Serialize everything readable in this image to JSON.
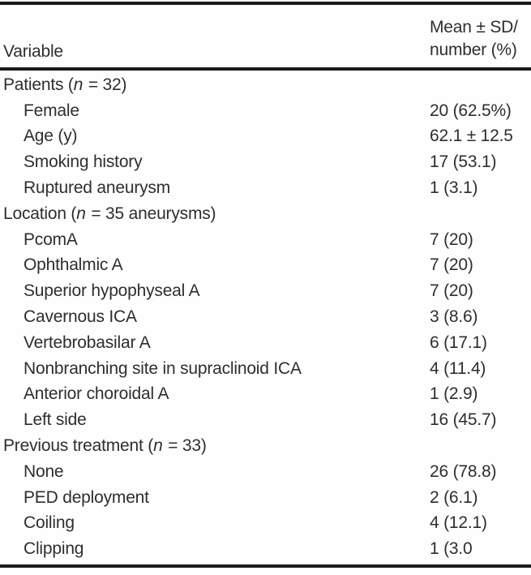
{
  "table": {
    "header": {
      "col1": "Variable",
      "col2_line1": "Mean ± SD/",
      "col2_line2": "number (%)"
    },
    "rows": [
      {
        "label_parts": [
          {
            "t": "Patients ("
          },
          {
            "t": "n",
            "italic": true
          },
          {
            "t": " = 32)"
          }
        ],
        "value": "",
        "indent": 0
      },
      {
        "label_parts": [
          {
            "t": "Female"
          }
        ],
        "value": "20 (62.5%)",
        "indent": 1
      },
      {
        "label_parts": [
          {
            "t": "Age (y)"
          }
        ],
        "value": "62.1 ± 12.5",
        "indent": 1
      },
      {
        "label_parts": [
          {
            "t": "Smoking history"
          }
        ],
        "value": "17 (53.1)",
        "indent": 1
      },
      {
        "label_parts": [
          {
            "t": "Ruptured aneurysm"
          }
        ],
        "value": "1 (3.1)",
        "indent": 1
      },
      {
        "label_parts": [
          {
            "t": "Location ("
          },
          {
            "t": "n",
            "italic": true
          },
          {
            "t": " = 35 aneurysms)"
          }
        ],
        "value": "",
        "indent": 0
      },
      {
        "label_parts": [
          {
            "t": "PcomA"
          }
        ],
        "value": "7 (20)",
        "indent": 1
      },
      {
        "label_parts": [
          {
            "t": "Ophthalmic A"
          }
        ],
        "value": "7 (20)",
        "indent": 1
      },
      {
        "label_parts": [
          {
            "t": "Superior hypophyseal A"
          }
        ],
        "value": "7 (20)",
        "indent": 1
      },
      {
        "label_parts": [
          {
            "t": "Cavernous ICA"
          }
        ],
        "value": "3 (8.6)",
        "indent": 1
      },
      {
        "label_parts": [
          {
            "t": "Vertebrobasilar A"
          }
        ],
        "value": "6 (17.1)",
        "indent": 1
      },
      {
        "label_parts": [
          {
            "t": "Nonbranching site in supraclinoid ICA"
          }
        ],
        "value": "4 (11.4)",
        "indent": 1
      },
      {
        "label_parts": [
          {
            "t": "Anterior choroidal A"
          }
        ],
        "value": "1 (2.9)",
        "indent": 1
      },
      {
        "label_parts": [
          {
            "t": "Left side"
          }
        ],
        "value": "16 (45.7)",
        "indent": 1
      },
      {
        "label_parts": [
          {
            "t": "Previous treatment ("
          },
          {
            "t": "n",
            "italic": true
          },
          {
            "t": " = 33)"
          }
        ],
        "value": "",
        "indent": 0
      },
      {
        "label_parts": [
          {
            "t": "None"
          }
        ],
        "value": "26 (78.8)",
        "indent": 1
      },
      {
        "label_parts": [
          {
            "t": "PED deployment"
          }
        ],
        "value": "2 (6.1)",
        "indent": 1
      },
      {
        "label_parts": [
          {
            "t": "Coiling"
          }
        ],
        "value": "4 (12.1)",
        "indent": 1
      },
      {
        "label_parts": [
          {
            "t": "Clipping"
          }
        ],
        "value": "1 (3.0",
        "indent": 1
      }
    ],
    "colors": {
      "text": "#2e2e2e",
      "rule": "#1b1b1b",
      "background": "#fefefe"
    }
  }
}
